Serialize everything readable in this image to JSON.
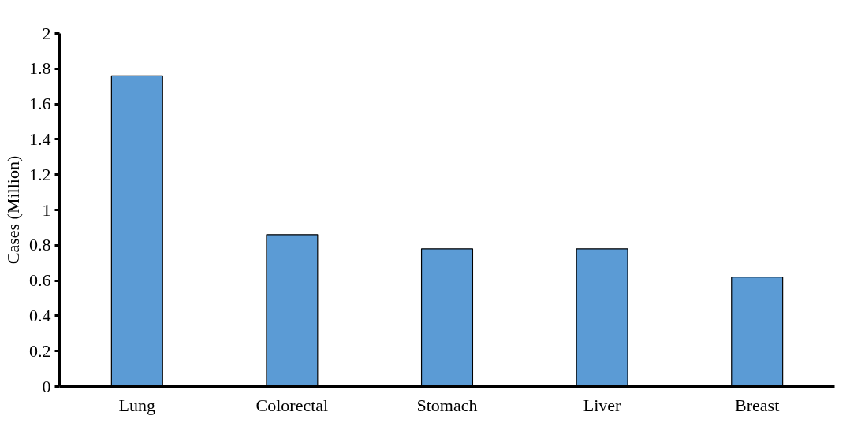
{
  "chart_data": {
    "type": "bar",
    "ylabel": "Cases (Million)",
    "categories": [
      "Lung",
      "Colorectal",
      "Stomach",
      "Liver",
      "Breast"
    ],
    "values": [
      1.76,
      0.86,
      0.78,
      0.78,
      0.62
    ],
    "color": "#5b9bd5",
    "ylim": [
      0,
      2
    ],
    "yticks": [
      0,
      0.2,
      0.4,
      0.6,
      0.8,
      1,
      1.2,
      1.4,
      1.6,
      1.8,
      2
    ],
    "grid": false
  }
}
